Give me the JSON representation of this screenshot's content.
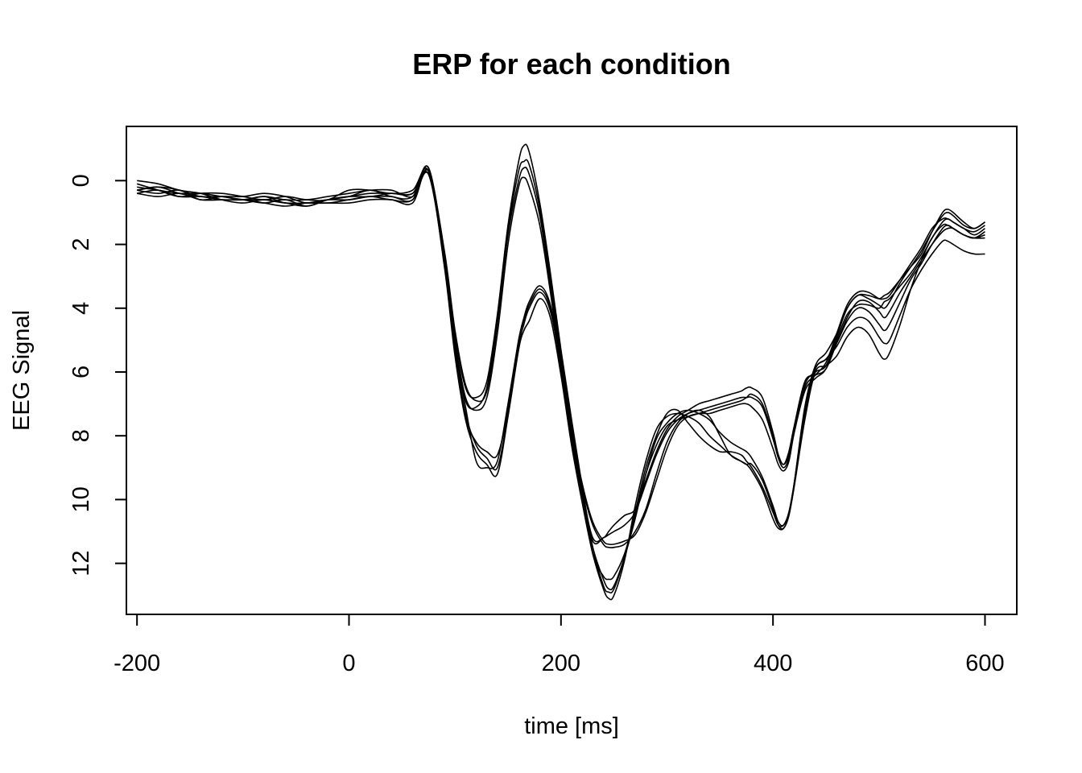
{
  "chart_data": {
    "type": "line",
    "title": "ERP for each condition",
    "xlabel": "time [ms]",
    "ylabel": "EEG Signal",
    "xlim": [
      -210,
      630
    ],
    "ylim": [
      -1.7,
      13.6
    ],
    "y_reversed": true,
    "x_ticks": [
      -200,
      0,
      200,
      400,
      600
    ],
    "y_ticks": [
      0,
      2,
      4,
      6,
      8,
      10,
      12
    ],
    "grid": false,
    "legend": "none",
    "line_color": "#000000",
    "x": [
      -200,
      -180,
      -160,
      -140,
      -120,
      -100,
      -80,
      -60,
      -40,
      -20,
      0,
      20,
      40,
      60,
      75,
      90,
      100,
      110,
      120,
      130,
      140,
      150,
      160,
      165,
      170,
      180,
      190,
      200,
      210,
      220,
      230,
      240,
      245,
      250,
      260,
      270,
      280,
      290,
      300,
      310,
      320,
      330,
      340,
      350,
      360,
      370,
      375,
      380,
      390,
      400,
      405,
      410,
      415,
      420,
      430,
      440,
      450,
      460,
      470,
      480,
      490,
      500,
      505,
      510,
      520,
      530,
      540,
      550,
      560,
      565,
      570,
      580,
      590,
      600
    ],
    "series": [
      {
        "values": [
          0.0,
          0.1,
          0.3,
          0.4,
          0.6,
          0.7,
          0.6,
          0.7,
          0.8,
          0.6,
          0.5,
          0.5,
          0.4,
          0.4,
          -0.4,
          2.3,
          4.8,
          6.5,
          6.8,
          6.3,
          4.2,
          1.4,
          -0.6,
          -1.1,
          -0.9,
          0.7,
          2.9,
          5.3,
          7.5,
          9.6,
          11.5,
          12.7,
          12.9,
          12.8,
          11.8,
          10.4,
          9.0,
          8.0,
          7.3,
          7.2,
          7.6,
          8.0,
          8.3,
          8.5,
          8.5,
          8.6,
          8.8,
          9.0,
          9.6,
          10.4,
          10.8,
          10.8,
          10.4,
          9.5,
          7.3,
          5.9,
          5.6,
          5.2,
          4.6,
          4.3,
          4.4,
          4.9,
          5.1,
          5.0,
          4.2,
          3.4,
          2.8,
          2.3,
          1.9,
          1.9,
          2.0,
          2.2,
          2.3,
          2.3
        ]
      },
      {
        "values": [
          0.3,
          0.2,
          0.4,
          0.5,
          0.5,
          0.6,
          0.5,
          0.7,
          0.7,
          0.7,
          0.6,
          0.5,
          0.6,
          0.6,
          -0.3,
          2.2,
          4.7,
          6.4,
          6.9,
          6.6,
          4.5,
          1.6,
          -0.3,
          -0.6,
          -0.5,
          0.9,
          3.1,
          5.5,
          7.7,
          9.8,
          11.7,
          12.4,
          12.5,
          12.4,
          11.7,
          10.5,
          9.2,
          8.3,
          7.7,
          7.5,
          7.4,
          7.3,
          7.2,
          7.1,
          7.0,
          6.9,
          6.8,
          6.7,
          7.0,
          8.0,
          8.6,
          8.9,
          8.5,
          7.7,
          6.3,
          6.1,
          5.9,
          5.1,
          4.3,
          3.8,
          3.8,
          4.1,
          4.3,
          4.1,
          3.5,
          3.0,
          2.5,
          2.0,
          1.6,
          1.5,
          1.5,
          1.7,
          1.8,
          1.8
        ]
      },
      {
        "values": [
          0.3,
          0.4,
          0.3,
          0.6,
          0.5,
          0.5,
          0.4,
          0.5,
          0.7,
          0.6,
          0.5,
          0.4,
          0.4,
          0.4,
          -0.2,
          2.6,
          5.3,
          7.3,
          8.3,
          8.7,
          9.0,
          7.3,
          5.2,
          4.5,
          4.0,
          3.5,
          4.1,
          5.8,
          7.9,
          9.6,
          10.8,
          11.4,
          11.5,
          11.5,
          11.4,
          11.0,
          10.3,
          9.2,
          8.2,
          7.6,
          7.3,
          7.2,
          7.4,
          8.0,
          8.6,
          8.8,
          8.9,
          8.9,
          9.4,
          10.3,
          10.8,
          10.9,
          10.5,
          9.6,
          7.5,
          6.0,
          5.8,
          5.5,
          4.9,
          4.6,
          4.8,
          5.4,
          5.6,
          5.4,
          4.5,
          3.4,
          2.5,
          1.8,
          1.4,
          1.4,
          1.5,
          1.7,
          1.8,
          1.7
        ]
      },
      {
        "values": [
          0.2,
          0.3,
          0.4,
          0.4,
          0.5,
          0.6,
          0.7,
          0.6,
          0.8,
          0.6,
          0.5,
          0.3,
          0.5,
          0.5,
          -0.4,
          2.4,
          5.1,
          6.9,
          7.1,
          6.5,
          4.4,
          1.7,
          0.0,
          -0.4,
          -0.2,
          1.1,
          3.3,
          5.6,
          7.8,
          9.7,
          11.2,
          11.2,
          11.0,
          10.8,
          10.5,
          10.3,
          9.4,
          8.5,
          7.8,
          7.4,
          7.2,
          7.0,
          6.9,
          6.8,
          6.7,
          6.6,
          6.5,
          6.5,
          6.8,
          7.9,
          8.6,
          8.9,
          8.6,
          7.8,
          6.4,
          6.0,
          5.8,
          4.9,
          4.0,
          3.6,
          3.6,
          3.7,
          3.6,
          3.5,
          3.1,
          2.7,
          2.3,
          1.6,
          1.0,
          0.9,
          1.0,
          1.3,
          1.5,
          1.3
        ]
      },
      {
        "values": [
          0.4,
          0.5,
          0.4,
          0.6,
          0.6,
          0.6,
          0.5,
          0.6,
          0.6,
          0.5,
          0.4,
          0.3,
          0.3,
          0.5,
          -0.2,
          2.4,
          5.0,
          6.8,
          7.2,
          6.8,
          4.8,
          2.0,
          0.2,
          -0.1,
          0.2,
          1.4,
          3.5,
          5.8,
          7.9,
          9.8,
          11.3,
          11.2,
          11.1,
          11.0,
          10.8,
          10.4,
          9.5,
          8.6,
          7.9,
          7.5,
          7.3,
          7.2,
          7.1,
          7.0,
          6.9,
          6.8,
          6.8,
          6.8,
          7.1,
          8.1,
          8.7,
          9.0,
          8.7,
          7.9,
          6.6,
          6.2,
          5.9,
          5.0,
          4.2,
          3.9,
          3.9,
          4.0,
          3.8,
          3.7,
          3.3,
          2.9,
          2.4,
          1.8,
          1.3,
          1.2,
          1.3,
          1.5,
          1.7,
          1.5
        ]
      },
      {
        "values": [
          0.4,
          0.3,
          0.5,
          0.5,
          0.6,
          0.6,
          0.7,
          0.8,
          0.7,
          0.7,
          0.7,
          0.6,
          0.6,
          0.7,
          -0.3,
          2.7,
          5.5,
          7.5,
          8.5,
          8.9,
          9.2,
          7.4,
          5.3,
          4.7,
          4.4,
          3.7,
          4.3,
          6.1,
          8.3,
          10.1,
          11.7,
          12.8,
          13.1,
          13.0,
          11.9,
          10.2,
          8.8,
          7.8,
          7.4,
          7.3,
          7.4,
          7.6,
          8.0,
          8.3,
          8.6,
          8.8,
          8.9,
          9.1,
          9.7,
          10.6,
          10.9,
          10.9,
          10.5,
          9.5,
          7.1,
          5.8,
          5.4,
          4.8,
          4.0,
          3.6,
          3.7,
          3.9,
          4.0,
          3.8,
          3.2,
          2.7,
          2.2,
          1.6,
          1.1,
          1.0,
          1.1,
          1.4,
          1.5,
          1.3
        ]
      },
      {
        "values": [
          0.1,
          0.3,
          0.5,
          0.4,
          0.4,
          0.5,
          0.6,
          0.5,
          0.6,
          0.6,
          0.3,
          0.3,
          0.4,
          0.3,
          -0.3,
          2.5,
          5.2,
          7.1,
          8.8,
          9.0,
          8.8,
          7.0,
          5.0,
          4.3,
          3.8,
          3.3,
          3.9,
          5.7,
          7.8,
          9.5,
          10.7,
          11.3,
          11.4,
          11.4,
          11.3,
          11.1,
          10.4,
          9.4,
          8.4,
          7.7,
          7.4,
          7.3,
          7.3,
          7.2,
          7.1,
          7.0,
          7.0,
          7.1,
          7.5,
          8.4,
          8.9,
          9.1,
          8.8,
          7.9,
          6.5,
          6.1,
          5.7,
          4.8,
          3.9,
          3.5,
          3.5,
          3.7,
          3.7,
          3.6,
          3.1,
          2.6,
          2.1,
          1.5,
          1.2,
          1.2,
          1.3,
          1.5,
          1.6,
          1.4
        ]
      },
      {
        "values": [
          0.3,
          0.2,
          0.3,
          0.5,
          0.5,
          0.6,
          0.6,
          0.7,
          0.7,
          0.6,
          0.6,
          0.5,
          0.5,
          0.6,
          -0.4,
          2.6,
          5.4,
          7.4,
          8.2,
          8.5,
          8.6,
          7.2,
          5.0,
          4.4,
          3.9,
          3.4,
          4.0,
          5.9,
          8.1,
          9.9,
          11.5,
          12.5,
          12.8,
          12.7,
          11.8,
          10.6,
          9.2,
          8.1,
          7.6,
          7.3,
          7.2,
          7.3,
          7.5,
          7.9,
          8.2,
          8.4,
          8.5,
          8.7,
          9.3,
          10.2,
          10.7,
          10.8,
          10.4,
          9.5,
          7.2,
          5.9,
          5.6,
          5.1,
          4.4,
          4.0,
          4.1,
          4.5,
          4.7,
          4.5,
          3.8,
          3.1,
          2.6,
          2.0,
          1.5,
          1.4,
          1.5,
          1.7,
          1.8,
          1.6
        ]
      }
    ]
  }
}
